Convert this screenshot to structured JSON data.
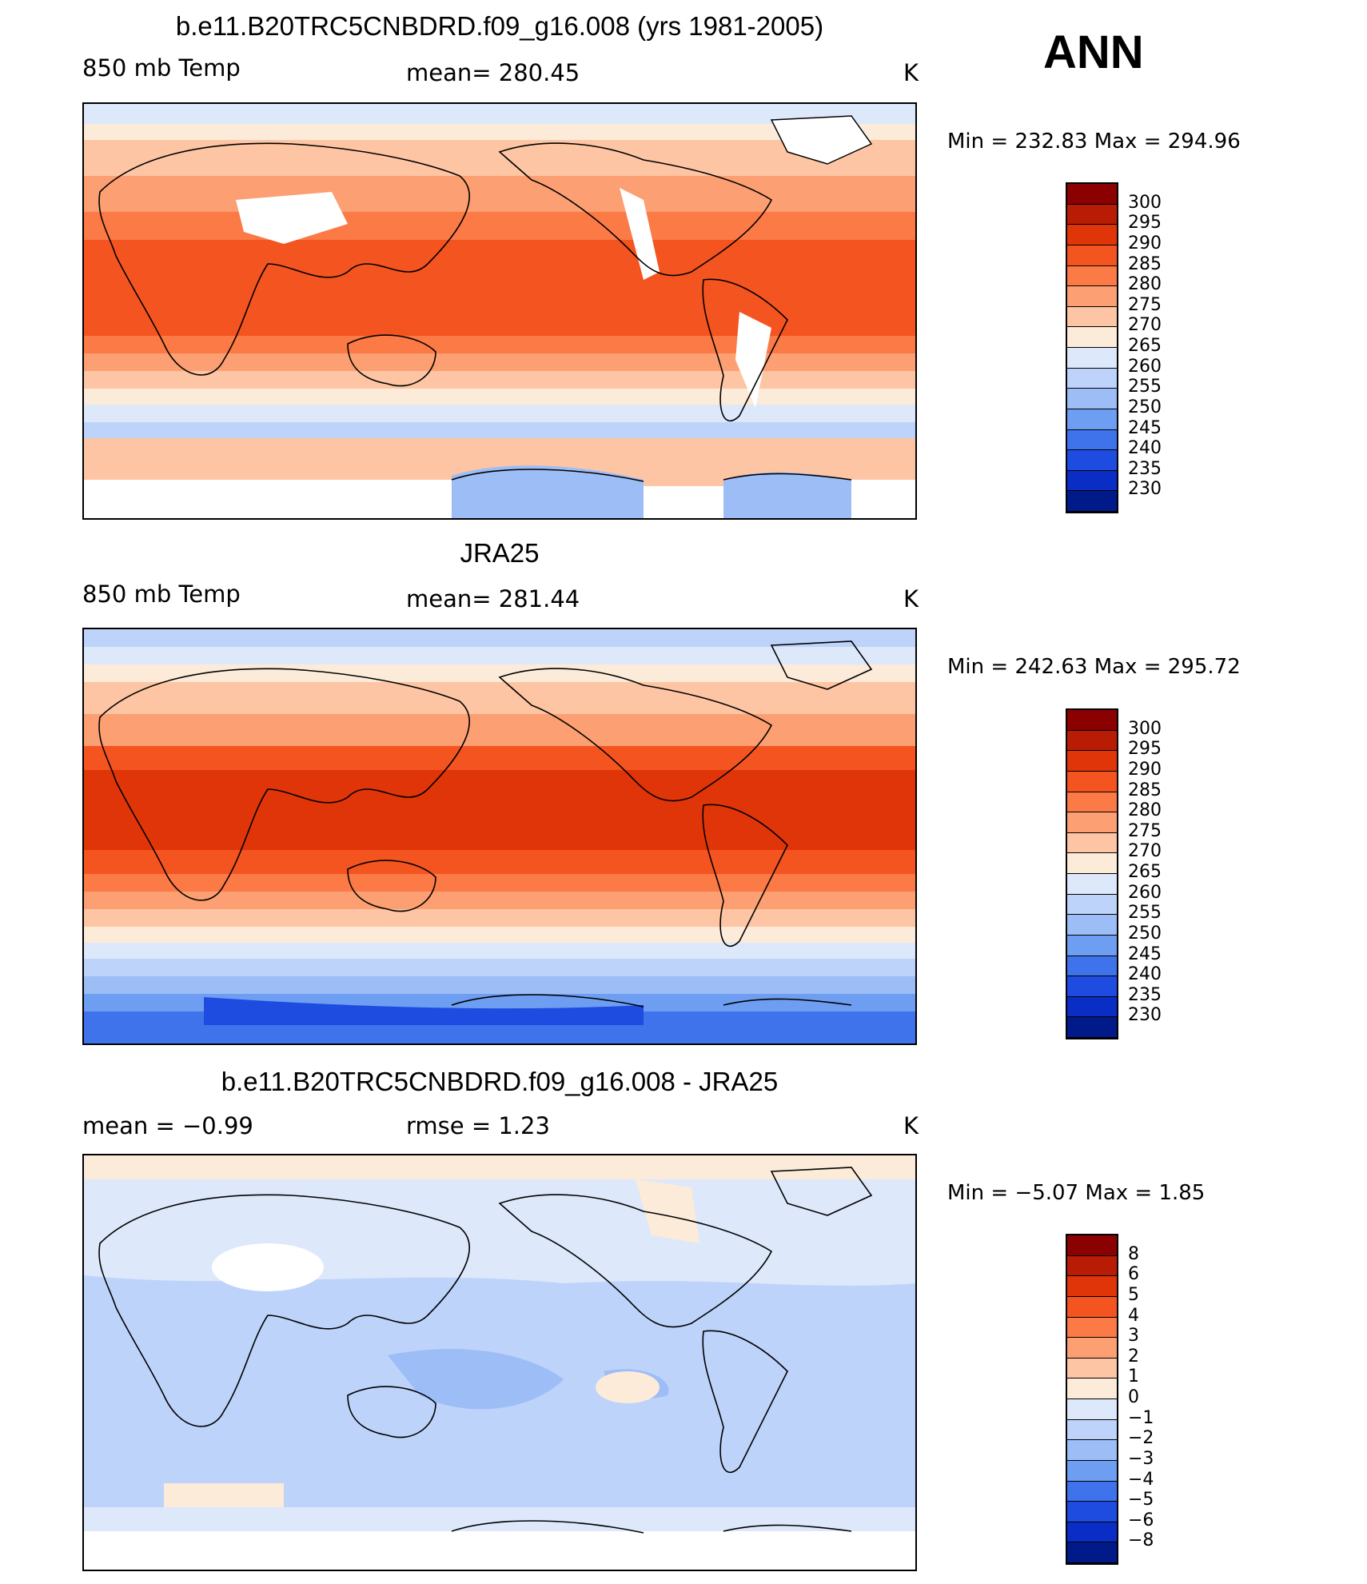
{
  "season": "ANN",
  "panels": [
    {
      "id": "model",
      "title": "b.e11.B20TRC5CNBDRD.f09_g16.008 (yrs 1981-2005)",
      "left_label": "850 mb Temp",
      "center_label": "mean=  280.45",
      "units": "K",
      "minmax": "Min  =  232.83  Max  =  294.96",
      "colorbar_labels": [
        "300",
        "295",
        "290",
        "285",
        "280",
        "275",
        "270",
        "265",
        "260",
        "255",
        "250",
        "245",
        "240",
        "235",
        "230"
      ],
      "colorbar_colors": [
        "#8b0000",
        "#b81c05",
        "#e03508",
        "#f45420",
        "#fb7a46",
        "#fc9f72",
        "#fdc5a3",
        "#fdebd9",
        "#dde8fb",
        "#bdd3fa",
        "#9dbdf6",
        "#6e9ef2",
        "#3f73ec",
        "#1e4be0",
        "#0a2ec5",
        "#001a8a"
      ]
    },
    {
      "id": "obs",
      "title": "JRA25",
      "left_label": "850 mb Temp",
      "center_label": "mean=  281.44",
      "units": "K",
      "minmax": "Min  =  242.63  Max  =  295.72",
      "colorbar_labels": [
        "300",
        "295",
        "290",
        "285",
        "280",
        "275",
        "270",
        "265",
        "260",
        "255",
        "250",
        "245",
        "240",
        "235",
        "230"
      ],
      "colorbar_colors": [
        "#8b0000",
        "#b81c05",
        "#e03508",
        "#f45420",
        "#fb7a46",
        "#fc9f72",
        "#fdc5a3",
        "#fdebd9",
        "#dde8fb",
        "#bdd3fa",
        "#9dbdf6",
        "#6e9ef2",
        "#3f73ec",
        "#1e4be0",
        "#0a2ec5",
        "#001a8a"
      ]
    },
    {
      "id": "diff",
      "title": "b.e11.B20TRC5CNBDRD.f09_g16.008 - JRA25",
      "left_label": "mean =     −0.99",
      "center_label": "rmse =     1.23",
      "units": "K",
      "minmax": "Min  =     −5.07  Max  =      1.85",
      "colorbar_labels": [
        "8",
        "6",
        "5",
        "4",
        "3",
        "2",
        "1",
        "0",
        "−1",
        "−2",
        "−3",
        "−4",
        "−5",
        "−6",
        "−8"
      ],
      "colorbar_colors": [
        "#8b0000",
        "#b81c05",
        "#e03508",
        "#f45420",
        "#fb7a46",
        "#fc9f72",
        "#fdc5a3",
        "#fdebd9",
        "#dde8fb",
        "#bdd3fa",
        "#9dbdf6",
        "#6e9ef2",
        "#3f73ec",
        "#1e4be0",
        "#0a2ec5",
        "#001a8a"
      ]
    }
  ]
}
